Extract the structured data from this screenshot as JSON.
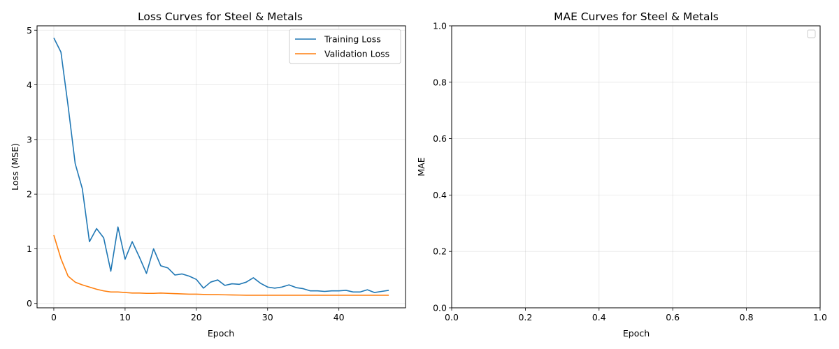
{
  "chart_data": [
    {
      "type": "line",
      "title": "Loss Curves for Steel & Metals",
      "xlabel": "Epoch",
      "ylabel": "Loss (MSE)",
      "xlim": [
        -2.35,
        49.35
      ],
      "ylim": [
        -0.08,
        5.08
      ],
      "xticks": [
        0,
        10,
        20,
        30,
        40
      ],
      "yticks": [
        0,
        1,
        2,
        3,
        4,
        5
      ],
      "grid": true,
      "legend": "top-right",
      "series": [
        {
          "name": "Training Loss",
          "color": "#1f77b4",
          "x": [
            0,
            1,
            2,
            3,
            4,
            5,
            6,
            7,
            8,
            9,
            10,
            11,
            12,
            13,
            14,
            15,
            16,
            17,
            18,
            19,
            20,
            21,
            22,
            23,
            24,
            25,
            26,
            27,
            28,
            29,
            30,
            31,
            32,
            33,
            34,
            35,
            36,
            37,
            38,
            39,
            40,
            41,
            42,
            43,
            44,
            45,
            46,
            47
          ],
          "values": [
            4.86,
            4.6,
            3.62,
            2.56,
            2.1,
            1.13,
            1.37,
            1.2,
            0.59,
            1.4,
            0.81,
            1.13,
            0.85,
            0.55,
            1.0,
            0.69,
            0.65,
            0.52,
            0.54,
            0.5,
            0.44,
            0.28,
            0.39,
            0.43,
            0.33,
            0.36,
            0.35,
            0.39,
            0.47,
            0.37,
            0.3,
            0.28,
            0.3,
            0.34,
            0.29,
            0.27,
            0.23,
            0.23,
            0.22,
            0.23,
            0.23,
            0.24,
            0.21,
            0.21,
            0.25,
            0.2,
            0.22,
            0.24
          ]
        },
        {
          "name": "Validation Loss",
          "color": "#ff7f0e",
          "x": [
            0,
            1,
            2,
            3,
            4,
            5,
            6,
            7,
            8,
            9,
            10,
            11,
            12,
            13,
            14,
            15,
            16,
            17,
            18,
            19,
            20,
            21,
            22,
            23,
            24,
            25,
            26,
            27,
            28,
            29,
            30,
            31,
            32,
            33,
            34,
            35,
            36,
            37,
            38,
            39,
            40,
            41,
            42,
            43,
            44,
            45,
            46,
            47
          ],
          "values": [
            1.25,
            0.82,
            0.5,
            0.39,
            0.34,
            0.3,
            0.26,
            0.23,
            0.21,
            0.21,
            0.2,
            0.19,
            0.19,
            0.185,
            0.185,
            0.19,
            0.185,
            0.18,
            0.175,
            0.17,
            0.17,
            0.165,
            0.16,
            0.16,
            0.158,
            0.155,
            0.153,
            0.15,
            0.15,
            0.15,
            0.15,
            0.15,
            0.15,
            0.15,
            0.15,
            0.15,
            0.15,
            0.15,
            0.15,
            0.15,
            0.15,
            0.15,
            0.15,
            0.15,
            0.15,
            0.15,
            0.15,
            0.15
          ]
        }
      ]
    },
    {
      "type": "line",
      "title": "MAE Curves for Steel & Metals",
      "xlabel": "Epoch",
      "ylabel": "MAE",
      "xlim": [
        0.0,
        1.0
      ],
      "ylim": [
        0.0,
        1.0
      ],
      "xticks": [
        "0.0",
        "0.2",
        "0.4",
        "0.6",
        "0.8",
        "1.0"
      ],
      "yticks": [
        "0.0",
        "0.2",
        "0.4",
        "0.6",
        "0.8",
        "1.0"
      ],
      "grid": true,
      "legend": "top-right",
      "series": []
    }
  ]
}
